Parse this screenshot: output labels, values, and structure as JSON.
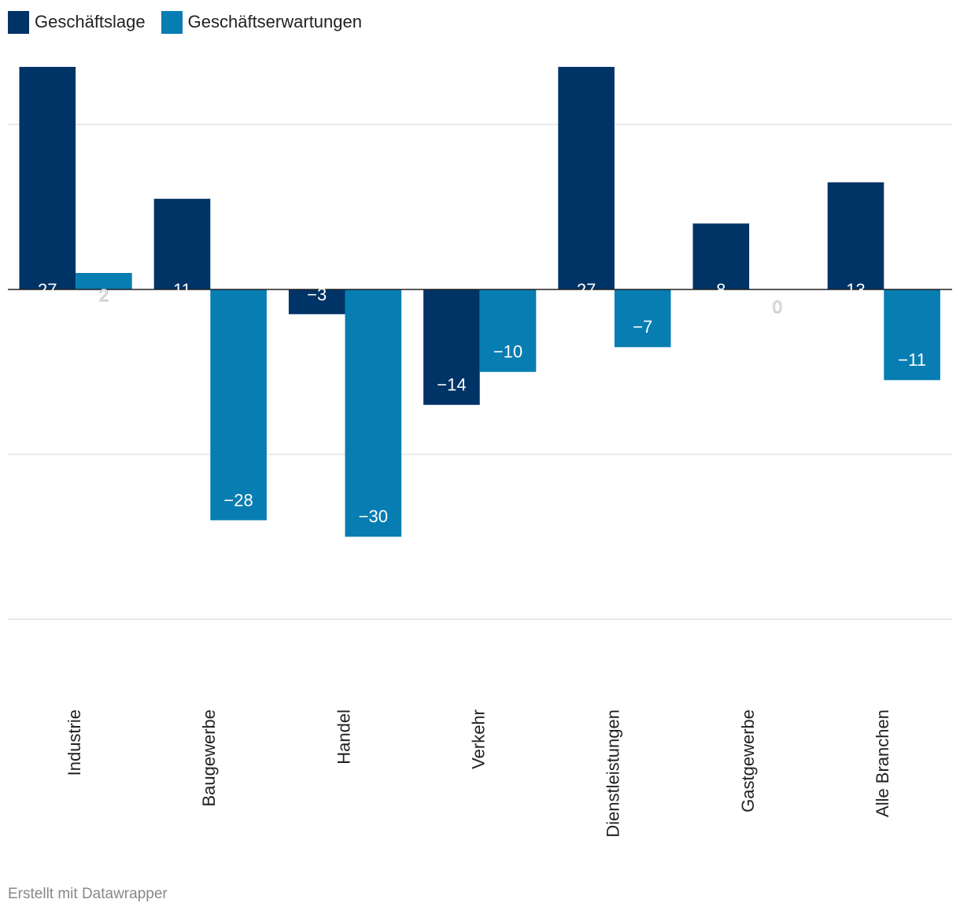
{
  "chart_data": {
    "type": "bar",
    "title": "",
    "xlabel": "",
    "ylabel": "",
    "categories": [
      "Industrie",
      "Baugewerbe",
      "Handel",
      "Verkehr",
      "Dienstleistungen",
      "Gastgewerbe",
      "Alle Branchen"
    ],
    "series": [
      {
        "name": "Geschäftslage",
        "color": "#003366",
        "values": [
          27,
          11,
          -3,
          -14,
          27,
          8,
          13
        ]
      },
      {
        "name": "Geschäftserwartungen",
        "color": "#087db2",
        "values": [
          2,
          -28,
          -30,
          -10,
          -7,
          0,
          -11
        ]
      }
    ],
    "value_labels": [
      [
        "27",
        "11",
        "−3",
        "−14",
        "27",
        "8",
        "13"
      ],
      [
        "2",
        "−28",
        "−30",
        "−10",
        "−7",
        "0",
        "−11"
      ]
    ],
    "yticks": [
      20,
      0,
      -20,
      -40
    ],
    "ylim": [
      -40,
      27
    ],
    "grid": true,
    "legend_position": "top-left",
    "tick_label_rotation": "vertical"
  },
  "legend": {
    "series_1": {
      "label": "Geschäftslage",
      "color": "#003366"
    },
    "series_2": {
      "label": "Geschäftserwartungen",
      "color": "#087db2"
    }
  },
  "footer": {
    "credit": "Erstellt mit Datawrapper"
  }
}
